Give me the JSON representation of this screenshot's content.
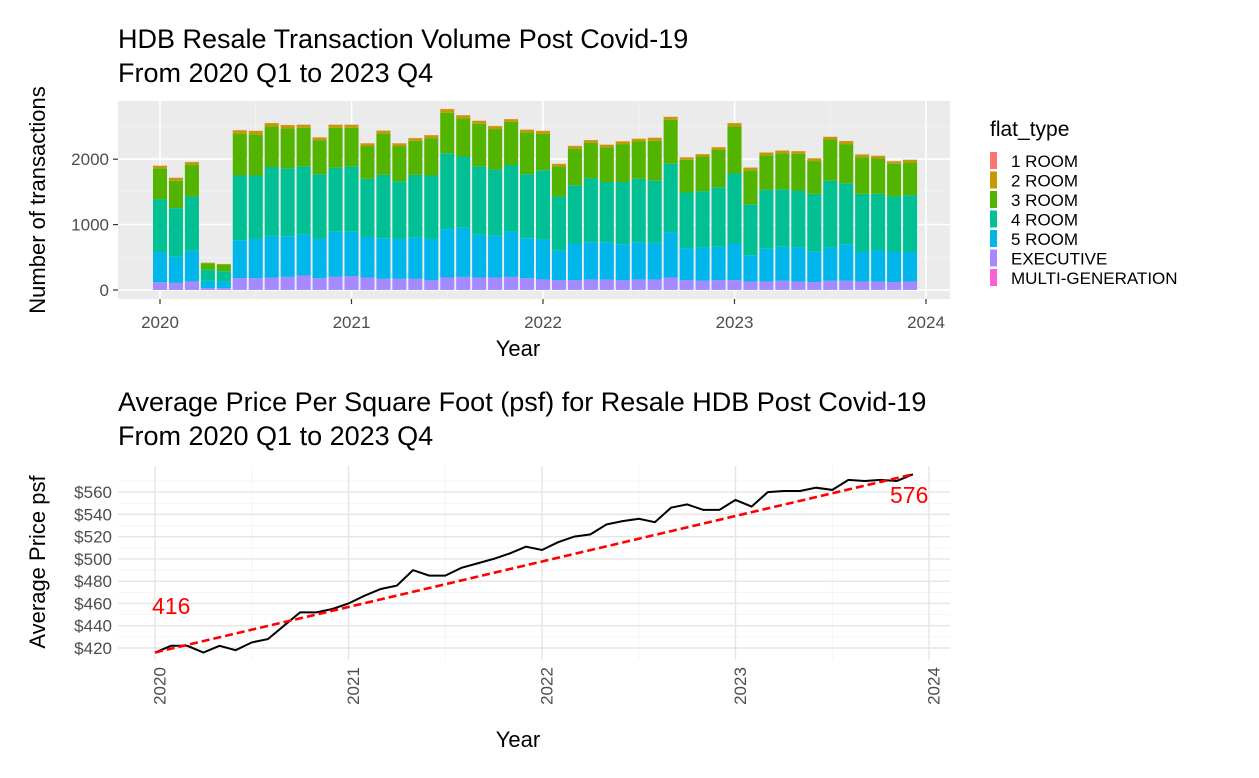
{
  "chart_data": [
    {
      "type": "bar",
      "stacked": true,
      "title_lines": [
        "HDB Resale Transaction Volume Post Covid-19",
        "From 2020 Q1 to 2023 Q4"
      ],
      "xlabel": "Year",
      "ylabel": "Number of transactions",
      "x_ticks": [
        "2020",
        "2021",
        "2022",
        "2023",
        "2024"
      ],
      "y_ticks": [
        "0",
        "1000",
        "2000"
      ],
      "ylim": [
        0,
        2800
      ],
      "legend_title": "flat_type",
      "legend_position": "right",
      "categories": [
        "2020-01",
        "2020-02",
        "2020-03",
        "2020-04",
        "2020-05",
        "2020-06",
        "2020-07",
        "2020-08",
        "2020-09",
        "2020-10",
        "2020-11",
        "2020-12",
        "2021-01",
        "2021-02",
        "2021-03",
        "2021-04",
        "2021-05",
        "2021-06",
        "2021-07",
        "2021-08",
        "2021-09",
        "2021-10",
        "2021-11",
        "2021-12",
        "2022-01",
        "2022-02",
        "2022-03",
        "2022-04",
        "2022-05",
        "2022-06",
        "2022-07",
        "2022-08",
        "2022-09",
        "2022-10",
        "2022-11",
        "2022-12",
        "2023-01",
        "2023-02",
        "2023-03",
        "2023-04",
        "2023-05",
        "2023-06",
        "2023-07",
        "2023-08",
        "2023-09",
        "2023-10",
        "2023-11",
        "2023-12"
      ],
      "series": [
        {
          "name": "1 ROOM",
          "color": "#F8766D",
          "values": [
            2,
            2,
            2,
            0,
            0,
            3,
            3,
            3,
            3,
            3,
            3,
            3,
            3,
            3,
            3,
            3,
            3,
            3,
            3,
            3,
            3,
            3,
            3,
            3,
            3,
            3,
            3,
            3,
            3,
            3,
            3,
            3,
            3,
            3,
            3,
            3,
            3,
            3,
            3,
            3,
            3,
            3,
            3,
            3,
            3,
            3,
            3,
            3
          ]
        },
        {
          "name": "2 ROOM",
          "color": "#C49A00",
          "values": [
            40,
            45,
            45,
            8,
            10,
            50,
            50,
            50,
            50,
            45,
            40,
            45,
            45,
            40,
            45,
            40,
            40,
            45,
            55,
            50,
            45,
            45,
            40,
            40,
            40,
            35,
            40,
            40,
            40,
            40,
            40,
            45,
            45,
            35,
            35,
            40,
            50,
            40,
            40,
            40,
            40,
            40,
            40,
            45,
            40,
            40,
            35,
            40
          ]
        },
        {
          "name": "3 ROOM",
          "color": "#53B400",
          "values": [
            470,
            420,
            480,
            100,
            100,
            640,
            630,
            620,
            610,
            590,
            520,
            610,
            590,
            500,
            630,
            540,
            520,
            570,
            620,
            580,
            650,
            620,
            660,
            640,
            560,
            460,
            560,
            540,
            530,
            580,
            570,
            610,
            670,
            500,
            530,
            570,
            720,
            520,
            530,
            550,
            560,
            500,
            630,
            600,
            560,
            540,
            500,
            500
          ]
        },
        {
          "name": "4 ROOM",
          "color": "#00C094",
          "values": [
            810,
            740,
            830,
            170,
            160,
            990,
            970,
            1050,
            1040,
            1040,
            990,
            980,
            1000,
            890,
            970,
            880,
            960,
            970,
            1160,
            1090,
            1040,
            1010,
            1010,
            980,
            1060,
            830,
            890,
            980,
            920,
            950,
            970,
            950,
            1050,
            850,
            860,
            910,
            1070,
            780,
            900,
            880,
            870,
            880,
            1020,
            930,
            890,
            860,
            850,
            870
          ]
        },
        {
          "name": "5 ROOM",
          "color": "#00B6EB",
          "values": [
            460,
            400,
            470,
            110,
            100,
            580,
            600,
            640,
            620,
            630,
            600,
            690,
            680,
            620,
            620,
            610,
            630,
            630,
            740,
            750,
            660,
            640,
            700,
            610,
            610,
            450,
            560,
            570,
            570,
            550,
            570,
            560,
            690,
            490,
            510,
            510,
            560,
            400,
            500,
            520,
            520,
            470,
            510,
            560,
            450,
            480,
            460,
            450
          ]
        },
        {
          "name": "EXECUTIVE",
          "color": "#A58AFF",
          "values": [
            120,
            110,
            130,
            30,
            28,
            180,
            180,
            190,
            200,
            220,
            180,
            200,
            210,
            190,
            170,
            170,
            170,
            150,
            190,
            200,
            190,
            190,
            200,
            180,
            160,
            150,
            150,
            160,
            160,
            150,
            160,
            160,
            190,
            150,
            140,
            150,
            150,
            130,
            130,
            140,
            130,
            120,
            140,
            140,
            130,
            130,
            120,
            130
          ]
        },
        {
          "name": "MULTI-GENERATION",
          "color": "#FB61D7",
          "values": [
            0,
            0,
            1,
            0,
            0,
            1,
            1,
            1,
            1,
            1,
            1,
            1,
            1,
            1,
            1,
            1,
            1,
            1,
            1,
            1,
            1,
            1,
            1,
            1,
            1,
            1,
            1,
            1,
            1,
            1,
            1,
            1,
            1,
            1,
            1,
            1,
            1,
            1,
            1,
            1,
            1,
            1,
            1,
            1,
            1,
            1,
            1,
            1
          ]
        }
      ]
    },
    {
      "type": "line",
      "title_lines": [
        "Average Price Per Square Foot (psf) for Resale HDB Post Covid-19",
        "From 2020 Q1 to 2023 Q4"
      ],
      "xlabel": "Year",
      "ylabel": "Average Price psf",
      "x_ticks": [
        "2020",
        "2021",
        "2022",
        "2023",
        "2024"
      ],
      "y_ticks": [
        "$420",
        "$440",
        "$460",
        "$480",
        "$500",
        "$520",
        "$540",
        "$560"
      ],
      "ylim": [
        410,
        578
      ],
      "x": [
        "2020-01",
        "2020-02",
        "2020-03",
        "2020-04",
        "2020-05",
        "2020-06",
        "2020-07",
        "2020-08",
        "2020-09",
        "2020-10",
        "2020-11",
        "2020-12",
        "2021-01",
        "2021-02",
        "2021-03",
        "2021-04",
        "2021-05",
        "2021-06",
        "2021-07",
        "2021-08",
        "2021-09",
        "2021-10",
        "2021-11",
        "2021-12",
        "2022-01",
        "2022-02",
        "2022-03",
        "2022-04",
        "2022-05",
        "2022-06",
        "2022-07",
        "2022-08",
        "2022-09",
        "2022-10",
        "2022-11",
        "2022-12",
        "2023-01",
        "2023-02",
        "2023-03",
        "2023-04",
        "2023-05",
        "2023-06",
        "2023-07",
        "2023-08",
        "2023-09",
        "2023-10",
        "2023-11",
        "2023-12"
      ],
      "series": [
        {
          "color": "#000000",
          "values": [
            416,
            422,
            422,
            416,
            422,
            418,
            425,
            428,
            440,
            452,
            452,
            455,
            460,
            467,
            473,
            476,
            490,
            485,
            485,
            492,
            496,
            500,
            505,
            511,
            508,
            515,
            520,
            522,
            531,
            534,
            536,
            533,
            546,
            549,
            544,
            544,
            553,
            547,
            560,
            561,
            561,
            564,
            562,
            571,
            570,
            571,
            570,
            576
          ]
        }
      ],
      "trend_line": {
        "color": "#FF0000",
        "style": "dashed",
        "start": 416,
        "end": 576
      },
      "annotations": [
        {
          "text": "416",
          "color": "#FF0000"
        },
        {
          "text": "576",
          "color": "#FF0000"
        }
      ]
    }
  ]
}
